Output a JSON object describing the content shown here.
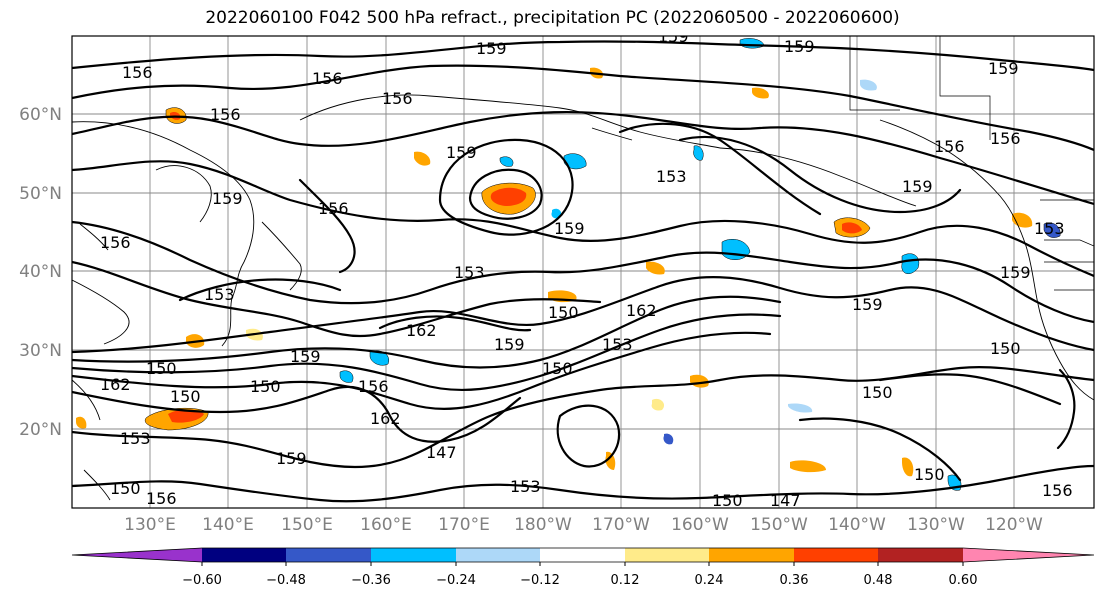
{
  "title": "2022060100 F042 500 hPa refract., precipitation PC (2022060500 - 2022060600)",
  "map": {
    "lat_labels": [
      "60°N",
      "50°N",
      "40°N",
      "30°N",
      "20°N"
    ],
    "lon_labels": [
      "130°E",
      "140°E",
      "150°E",
      "160°E",
      "170°E",
      "180°W",
      "170°W",
      "160°W",
      "150°W",
      "140°W",
      "130°W",
      "120°W"
    ],
    "contour_labels": [
      "156",
      "156",
      "156",
      "156",
      "159",
      "159",
      "159",
      "159",
      "159",
      "153",
      "156",
      "156",
      "159",
      "156",
      "159",
      "156",
      "153",
      "153",
      "162",
      "150",
      "162",
      "153",
      "159",
      "150",
      "150",
      "150",
      "162",
      "159",
      "156",
      "162",
      "153",
      "150",
      "147",
      "159",
      "150",
      "153",
      "156",
      "150",
      "147",
      "150",
      "156",
      "159",
      "159",
      "153",
      "150",
      "159",
      "150"
    ]
  },
  "colorbar": {
    "colors": [
      "#9932cc",
      "#000080",
      "#3558c8",
      "#00bfff",
      "#add8f8",
      "#ffffff",
      "#ffeb8a",
      "#ffa500",
      "#ff4000",
      "#b22222",
      "#ff85b0"
    ],
    "tick_labels": [
      "−0.60",
      "−0.48",
      "−0.36",
      "−0.24",
      "−0.12",
      "0.12",
      "0.24",
      "0.36",
      "0.48",
      "0.60"
    ]
  }
}
